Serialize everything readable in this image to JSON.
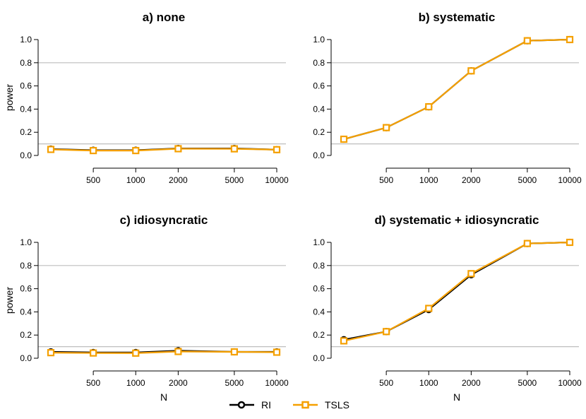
{
  "chart_data": [
    {
      "type": "line",
      "title": "a) none",
      "xlabel": "",
      "ylabel": "power",
      "x": [
        250,
        500,
        1000,
        2000,
        5000,
        10000
      ],
      "x_tick_labels": [
        "500",
        "1000",
        "2000",
        "5000",
        "10000"
      ],
      "x_tick_values": [
        500,
        1000,
        2000,
        5000,
        10000
      ],
      "x_scale": "log",
      "ylim": [
        0,
        1
      ],
      "y_tick_labels": [
        "0.0",
        "0.2",
        "0.4",
        "0.6",
        "0.8",
        "1.0"
      ],
      "hlines": [
        0.1,
        0.8
      ],
      "series": [
        {
          "name": "RI",
          "values": [
            0.055,
            0.045,
            0.045,
            0.06,
            0.06,
            0.05
          ]
        },
        {
          "name": "TSLS",
          "values": [
            0.052,
            0.042,
            0.042,
            0.058,
            0.057,
            0.05
          ]
        }
      ]
    },
    {
      "type": "line",
      "title": "b) systematic",
      "xlabel": "",
      "ylabel": "",
      "x": [
        250,
        500,
        1000,
        2000,
        5000,
        10000
      ],
      "x_tick_labels": [
        "500",
        "1000",
        "2000",
        "5000",
        "10000"
      ],
      "x_tick_values": [
        500,
        1000,
        2000,
        5000,
        10000
      ],
      "x_scale": "log",
      "ylim": [
        0,
        1
      ],
      "y_tick_labels": [
        "0.0",
        "0.2",
        "0.4",
        "0.6",
        "0.8",
        "1.0"
      ],
      "hlines": [
        0.1,
        0.8
      ],
      "series": [
        {
          "name": "RI",
          "values": [
            0.14,
            0.24,
            0.42,
            0.73,
            0.99,
            1.0
          ]
        },
        {
          "name": "TSLS",
          "values": [
            0.14,
            0.24,
            0.42,
            0.73,
            0.99,
            1.0
          ]
        }
      ]
    },
    {
      "type": "line",
      "title": "c) idiosyncratic",
      "xlabel": "N",
      "ylabel": "power",
      "x": [
        250,
        500,
        1000,
        2000,
        5000,
        10000
      ],
      "x_tick_labels": [
        "500",
        "1000",
        "2000",
        "5000",
        "10000"
      ],
      "x_tick_values": [
        500,
        1000,
        2000,
        5000,
        10000
      ],
      "x_scale": "log",
      "ylim": [
        0,
        1
      ],
      "y_tick_labels": [
        "0.0",
        "0.2",
        "0.4",
        "0.6",
        "0.8",
        "1.0"
      ],
      "hlines": [
        0.1,
        0.8
      ],
      "series": [
        {
          "name": "RI",
          "values": [
            0.055,
            0.05,
            0.05,
            0.065,
            0.055,
            0.055
          ]
        },
        {
          "name": "TSLS",
          "values": [
            0.048,
            0.045,
            0.044,
            0.058,
            0.055,
            0.052
          ]
        }
      ]
    },
    {
      "type": "line",
      "title": "d) systematic + idiosyncratic",
      "xlabel": "N",
      "ylabel": "",
      "x": [
        250,
        500,
        1000,
        2000,
        5000,
        10000
      ],
      "x_tick_labels": [
        "500",
        "1000",
        "2000",
        "5000",
        "10000"
      ],
      "x_tick_values": [
        500,
        1000,
        2000,
        5000,
        10000
      ],
      "x_scale": "log",
      "ylim": [
        0,
        1
      ],
      "y_tick_labels": [
        "0.0",
        "0.2",
        "0.4",
        "0.6",
        "0.8",
        "1.0"
      ],
      "hlines": [
        0.1,
        0.8
      ],
      "series": [
        {
          "name": "RI",
          "values": [
            0.16,
            0.23,
            0.42,
            0.72,
            0.99,
            1.0
          ]
        },
        {
          "name": "TSLS",
          "values": [
            0.15,
            0.23,
            0.43,
            0.73,
            0.99,
            1.0
          ]
        }
      ]
    }
  ],
  "legend": {
    "placement": "bottom-center",
    "items": [
      {
        "label": "RI",
        "color": "#000000",
        "marker": "circle"
      },
      {
        "label": "TSLS",
        "color": "#F5A000",
        "marker": "square"
      }
    ]
  },
  "colors": {
    "RI": "#000000",
    "TSLS": "#F5A000",
    "reference_line": "#BEBEBE"
  }
}
